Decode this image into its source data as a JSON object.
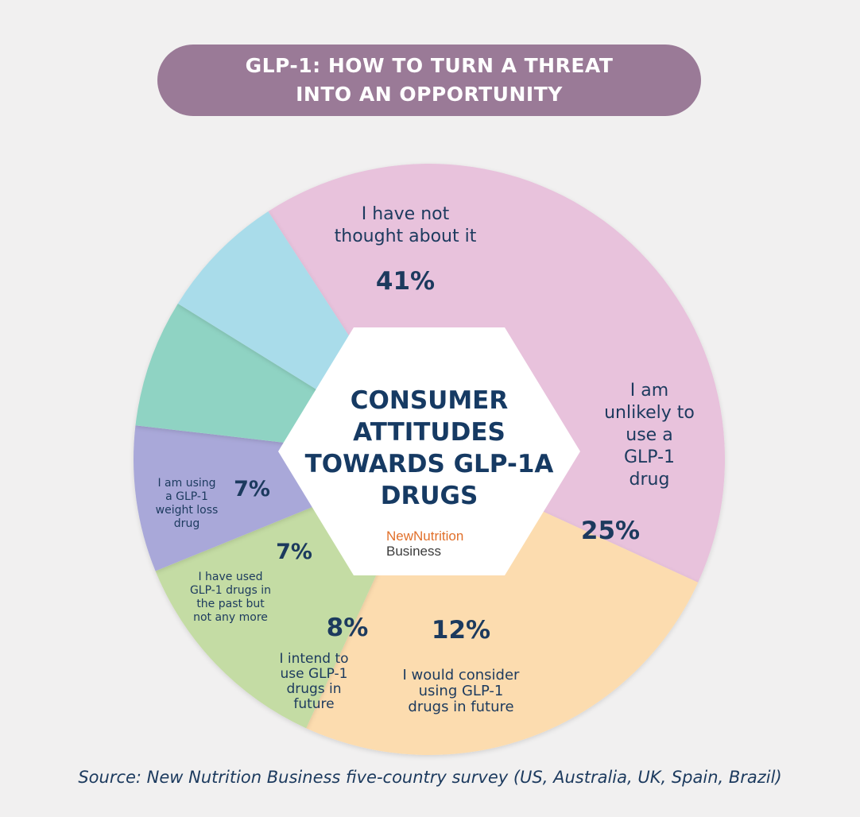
{
  "banner": {
    "line1": "GLP-1: HOW TO TURN A THREAT",
    "line2": "INTO AN OPPORTUNITY"
  },
  "center": {
    "title_lines": [
      "CONSUMER",
      "ATTITUDES",
      "TOWARDS GLP-1A",
      "DRUGS"
    ],
    "logo_line1": "NewNutrition",
    "logo_line2": "Business"
  },
  "source": "Source: New Nutrition Business five-country survey (US, Australia, UK, Spain, Brazil)",
  "colors": {
    "pink": "#e8c2dc",
    "orange": "#fcdcaf",
    "green": "#c4dca4",
    "purple": "#a9a8d9",
    "teal": "#8fd3c3",
    "blue": "#a9dcea",
    "banner": "#9a7a97",
    "text": "#1c3a5e"
  },
  "chart_data": {
    "type": "pie",
    "title": "CONSUMER ATTITUDES TOWARDS GLP-1A DRUGS",
    "slices": [
      {
        "label_lines": [
          "I have not",
          "thought about it"
        ],
        "value": 41,
        "value_label": "41%",
        "color": "#e8c2dc"
      },
      {
        "label_lines": [
          "I am",
          "unlikely to",
          "use a",
          "GLP-1",
          "drug"
        ],
        "value": 25,
        "value_label": "25%",
        "color": "#fcdcaf"
      },
      {
        "label_lines": [
          "I would consider",
          "using GLP-1",
          "drugs in future"
        ],
        "value": 12,
        "value_label": "12%",
        "color": "#c4dca4"
      },
      {
        "label_lines": [
          "I intend to",
          "use GLP-1",
          "drugs in",
          "future"
        ],
        "value": 8,
        "value_label": "8%",
        "color": "#a9a8d9"
      },
      {
        "label_lines": [
          "I have used",
          "GLP-1 drugs in",
          "the past but",
          "not any more"
        ],
        "value": 7,
        "value_label": "7%",
        "color": "#8fd3c3"
      },
      {
        "label_lines": [
          "I am using",
          "a GLP-1",
          "weight loss",
          "drug"
        ],
        "value": 7,
        "value_label": "7%",
        "color": "#a9dcea"
      }
    ]
  }
}
